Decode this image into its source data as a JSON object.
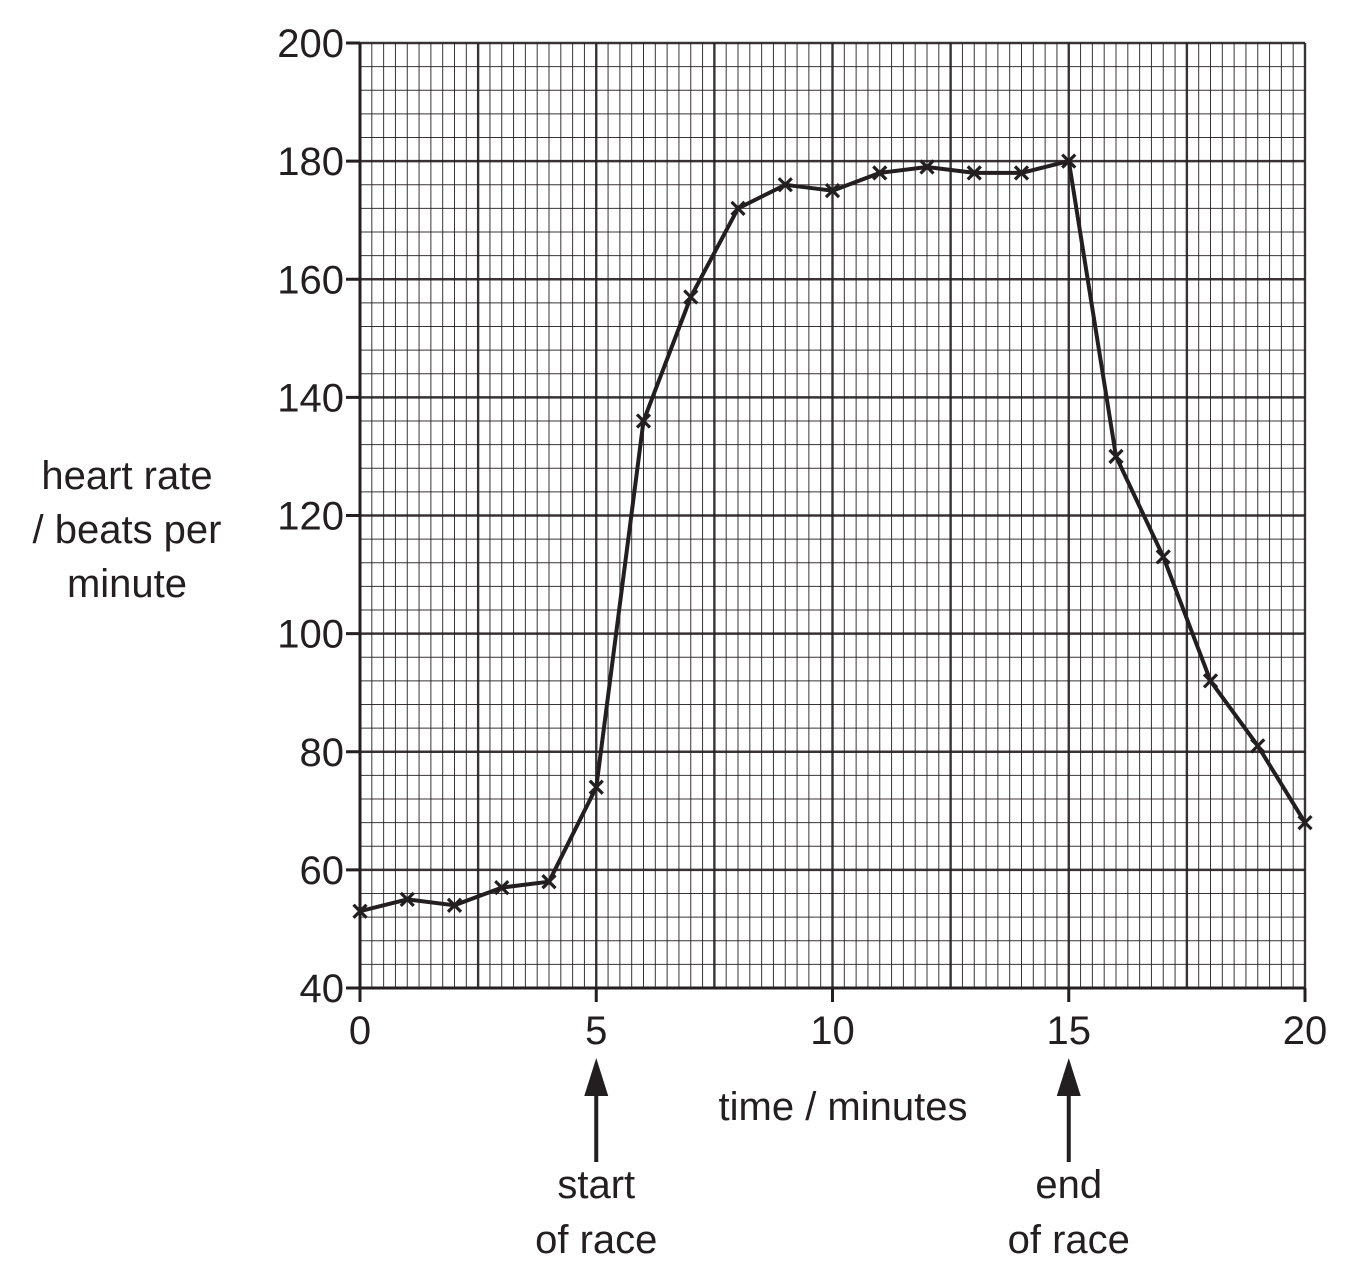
{
  "chart_data": {
    "type": "line",
    "xlabel": "time / minutes",
    "ylabel_lines": [
      "heart rate",
      "/ beats per",
      "minute"
    ],
    "xlim": [
      0,
      20
    ],
    "ylim": [
      40,
      200
    ],
    "x_ticks": [
      0,
      5,
      10,
      15,
      20
    ],
    "x_tick_labels": [
      "0",
      "5",
      "10",
      "15",
      "20"
    ],
    "y_ticks": [
      40,
      60,
      80,
      100,
      120,
      140,
      160,
      180,
      200
    ],
    "y_tick_labels": [
      "40",
      "60",
      "80",
      "100",
      "120",
      "140",
      "160",
      "180",
      "200"
    ],
    "grid": true,
    "marker": "x",
    "series": [
      {
        "x": [
          0,
          1,
          2,
          3,
          4,
          5,
          6,
          7,
          8,
          9,
          10,
          11,
          12,
          13,
          14,
          15,
          16,
          17,
          18,
          19,
          20
        ],
        "values": [
          53,
          55,
          54,
          57,
          58,
          74,
          136,
          157,
          172,
          176,
          175,
          178,
          179,
          178,
          178,
          180,
          130,
          113,
          92,
          81,
          68
        ]
      }
    ],
    "annotations": [
      {
        "x": 5,
        "lines": [
          "start",
          "of race"
        ]
      },
      {
        "x": 15,
        "lines": [
          "end",
          "of race"
        ]
      }
    ],
    "colors": {
      "ink": "#231f20",
      "background": "#ffffff"
    }
  }
}
